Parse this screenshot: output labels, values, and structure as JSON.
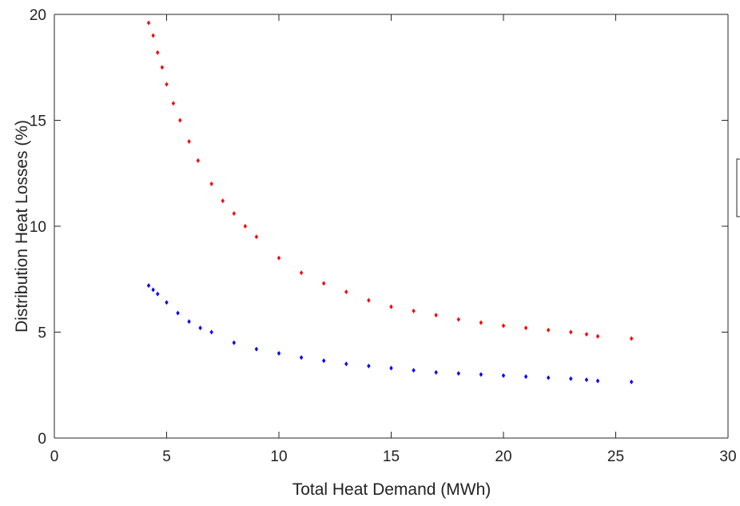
{
  "chart_data": {
    "type": "scatter",
    "xlabel": "Total Heat Demand (MWh)",
    "ylabel": "Distribution Heat Losses (%)",
    "xlim": [
      0,
      30
    ],
    "ylim": [
      0,
      20
    ],
    "xticks": [
      "0",
      "5",
      "10",
      "15",
      "20",
      "25",
      "30"
    ],
    "yticks": [
      "0",
      "5",
      "10",
      "15",
      "20"
    ],
    "grid": false,
    "legend": "right edge, clipped",
    "series": [
      {
        "color": "#ff0000",
        "points": [
          [
            4.2,
            19.6
          ],
          [
            4.4,
            19.0
          ],
          [
            4.6,
            18.2
          ],
          [
            4.8,
            17.5
          ],
          [
            5.0,
            16.7
          ],
          [
            5.3,
            15.8
          ],
          [
            5.6,
            15.0
          ],
          [
            6.0,
            14.0
          ],
          [
            6.4,
            13.1
          ],
          [
            7.0,
            12.0
          ],
          [
            7.5,
            11.2
          ],
          [
            8.0,
            10.6
          ],
          [
            8.5,
            10.0
          ],
          [
            9.0,
            9.5
          ],
          [
            10.0,
            8.5
          ],
          [
            11.0,
            7.8
          ],
          [
            12.0,
            7.3
          ],
          [
            13.0,
            6.9
          ],
          [
            14.0,
            6.5
          ],
          [
            15.0,
            6.2
          ],
          [
            16.0,
            6.0
          ],
          [
            17.0,
            5.8
          ],
          [
            18.0,
            5.6
          ],
          [
            19.0,
            5.45
          ],
          [
            20.0,
            5.3
          ],
          [
            21.0,
            5.2
          ],
          [
            22.0,
            5.1
          ],
          [
            23.0,
            5.0
          ],
          [
            23.7,
            4.9
          ],
          [
            24.2,
            4.8
          ],
          [
            25.7,
            4.7
          ]
        ]
      },
      {
        "color": "#0000ff",
        "points": [
          [
            4.2,
            7.2
          ],
          [
            4.4,
            7.0
          ],
          [
            4.6,
            6.8
          ],
          [
            5.0,
            6.4
          ],
          [
            5.5,
            5.9
          ],
          [
            6.0,
            5.5
          ],
          [
            6.5,
            5.2
          ],
          [
            7.0,
            5.0
          ],
          [
            8.0,
            4.5
          ],
          [
            9.0,
            4.2
          ],
          [
            10.0,
            4.0
          ],
          [
            11.0,
            3.8
          ],
          [
            12.0,
            3.65
          ],
          [
            13.0,
            3.5
          ],
          [
            14.0,
            3.4
          ],
          [
            15.0,
            3.3
          ],
          [
            16.0,
            3.2
          ],
          [
            17.0,
            3.1
          ],
          [
            18.0,
            3.05
          ],
          [
            19.0,
            3.0
          ],
          [
            20.0,
            2.95
          ],
          [
            21.0,
            2.9
          ],
          [
            22.0,
            2.85
          ],
          [
            23.0,
            2.8
          ],
          [
            23.7,
            2.75
          ],
          [
            24.2,
            2.7
          ],
          [
            25.7,
            2.65
          ]
        ]
      }
    ]
  }
}
